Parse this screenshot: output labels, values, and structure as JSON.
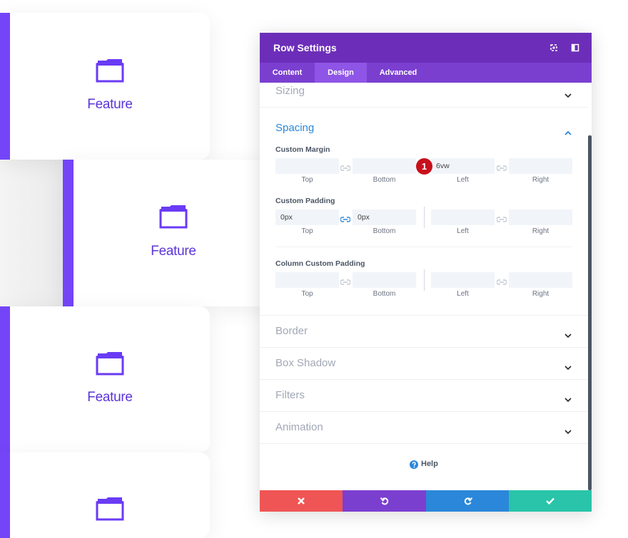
{
  "cards": [
    {
      "label": "Feature"
    },
    {
      "label": "Feature"
    },
    {
      "label": "Feature"
    },
    {}
  ],
  "panel": {
    "title": "Row Settings",
    "tabs": [
      "Content",
      "Design",
      "Advanced"
    ],
    "active_tab": "Design",
    "sizing": "Sizing",
    "spacing": {
      "title": "Spacing",
      "badge": "1",
      "groups": [
        {
          "label": "Custom Margin",
          "fields": [
            {
              "label": "Top"
            },
            {
              "label": "Bottom"
            },
            {
              "label": "Left",
              "value": "6vw"
            },
            {
              "label": "Right"
            }
          ]
        },
        {
          "label": "Custom Padding",
          "fields": [
            {
              "label": "Top",
              "value": "0px"
            },
            {
              "label": "Bottom",
              "value": "0px"
            },
            {
              "label": "Left"
            },
            {
              "label": "Right"
            }
          ]
        },
        {
          "label": "Column Custom Padding",
          "fields": [
            {
              "label": "Top"
            },
            {
              "label": "Bottom"
            },
            {
              "label": "Left"
            },
            {
              "label": "Right"
            }
          ]
        }
      ]
    },
    "sections": [
      "Border",
      "Box Shadow",
      "Filters",
      "Animation"
    ],
    "help": "Help"
  }
}
